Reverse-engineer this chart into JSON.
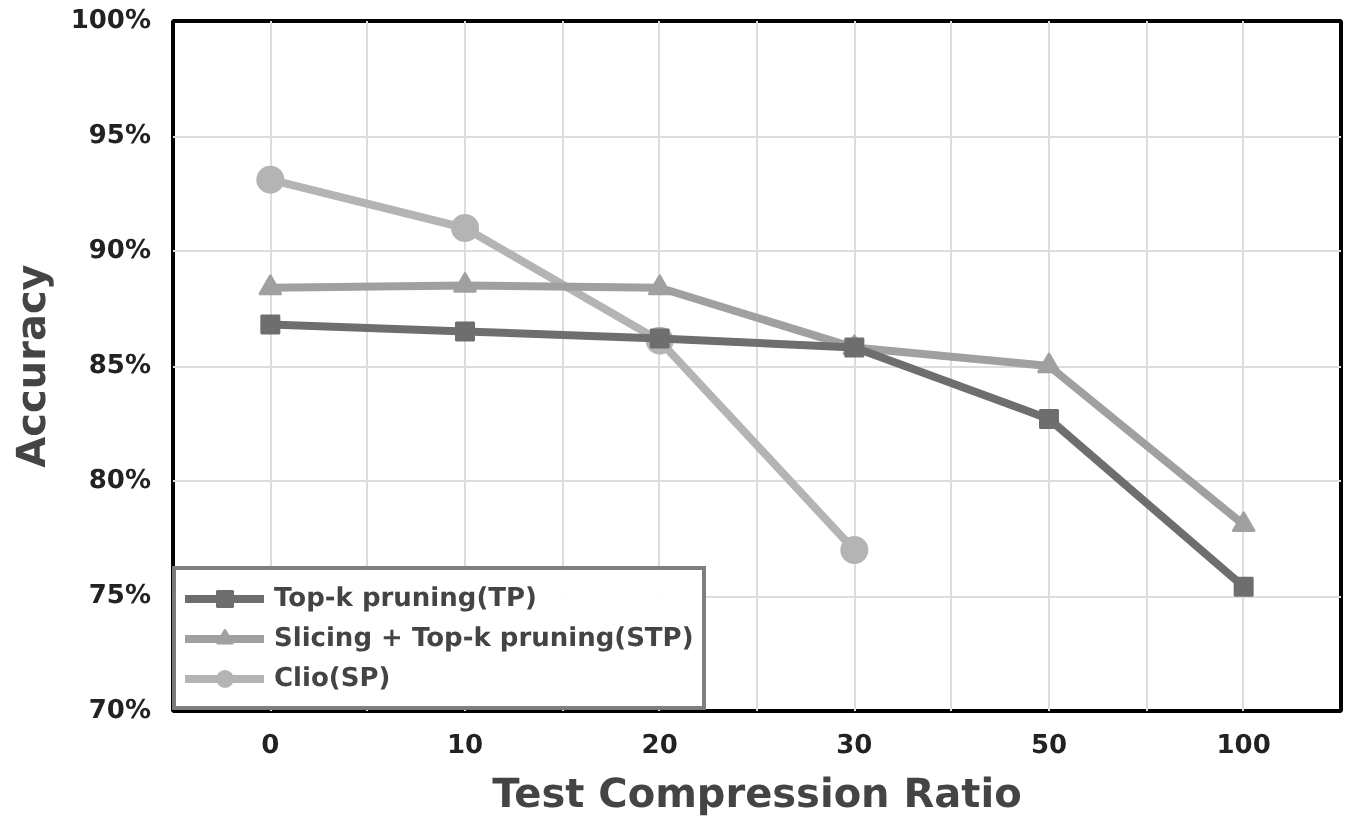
{
  "chart_data": {
    "type": "line",
    "xlabel": "Test Compression Ratio",
    "ylabel": "Accuracy",
    "categories": [
      "0",
      "10",
      "20",
      "30",
      "50",
      "100"
    ],
    "ylim": [
      70,
      100
    ],
    "yticks": [
      {
        "value": 70,
        "label": "70%"
      },
      {
        "value": 75,
        "label": "75%"
      },
      {
        "value": 80,
        "label": "80%"
      },
      {
        "value": 85,
        "label": "85%"
      },
      {
        "value": 90,
        "label": "90%"
      },
      {
        "value": 95,
        "label": "95%"
      },
      {
        "value": 100,
        "label": "100%"
      }
    ],
    "grid": true,
    "legend": "bottom left",
    "line_style": "solid",
    "series": [
      {
        "name": "Top-k pruning(TP)",
        "color": "#6e6e6e",
        "marker": "square",
        "values": [
          86.8,
          86.5,
          86.2,
          85.8,
          82.7,
          75.4
        ]
      },
      {
        "name": "Slicing + Top-k pruning(STP)",
        "color": "#a0a0a0",
        "marker": "triangle",
        "values": [
          88.4,
          88.5,
          88.4,
          85.8,
          85.0,
          78.1
        ]
      },
      {
        "name": "Clio(SP)",
        "color": "#b4b4b4",
        "marker": "circle",
        "values": [
          93.1,
          91.0,
          86.1,
          77.0,
          null,
          null
        ]
      }
    ]
  }
}
